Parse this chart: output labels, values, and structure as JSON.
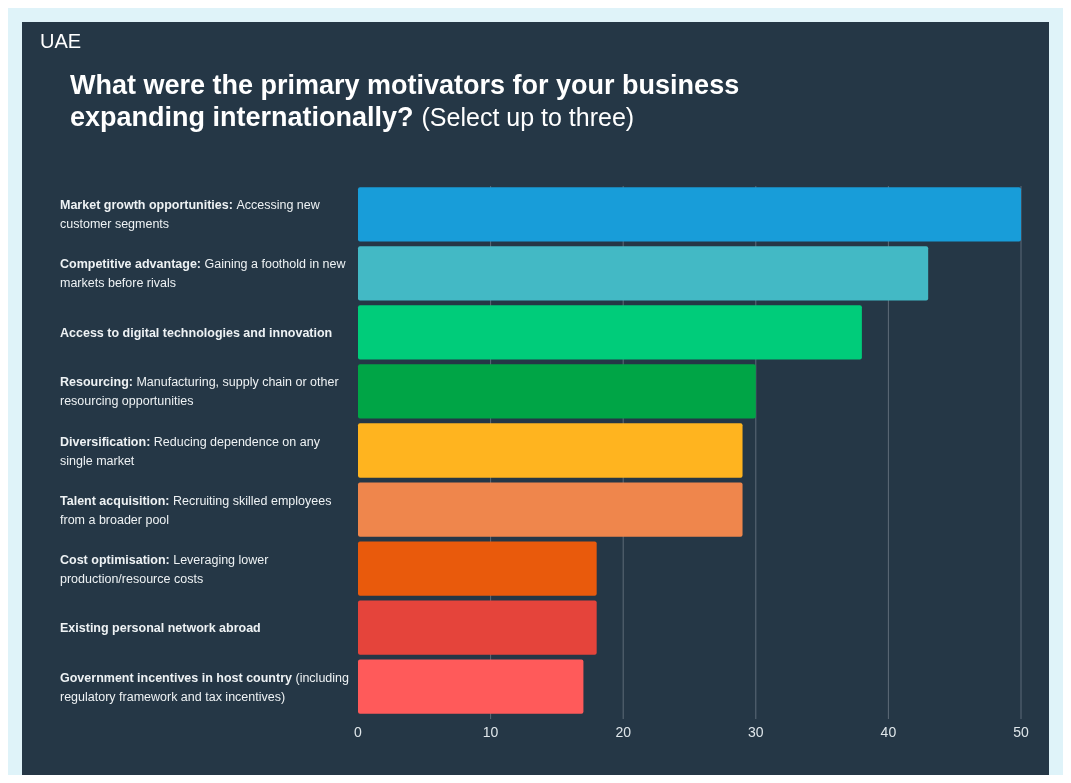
{
  "chart_data": {
    "type": "bar",
    "orientation": "horizontal",
    "title": "What were the primary motivators for your business expanding internationally?",
    "subtitle": "(Select up to three)",
    "annotations": [
      "UAE"
    ],
    "categories": [
      "Market growth opportunities: Accessing new customer segments",
      "Competitive advantage: Gaining a foothold in new markets before rivals",
      "Access to digital technologies and innovation",
      "Resourcing: Manufacturing, supply chain or other resourcing opportunities",
      "Diversification: Reducing dependence on any single market",
      "Talent acquisition: Recruiting skilled employees from a broader pool",
      "Cost optimisation: Leveraging lower production/resource costs",
      "Existing personal network abroad",
      "Government incentives in host country (including regulatory framework and tax incentives)"
    ],
    "values": [
      50,
      43,
      38,
      30,
      29,
      29,
      18,
      18,
      17
    ],
    "colors": [
      "#189dd9",
      "#43b9c5",
      "#00cc7a",
      "#00a546",
      "#ffb41f",
      "#ef864c",
      "#e95a0c",
      "#e5443b",
      "#ff5a5a"
    ],
    "xlim": [
      0,
      50
    ],
    "xticks": [
      0,
      10,
      20,
      30,
      40,
      50
    ],
    "grid": "x"
  }
}
